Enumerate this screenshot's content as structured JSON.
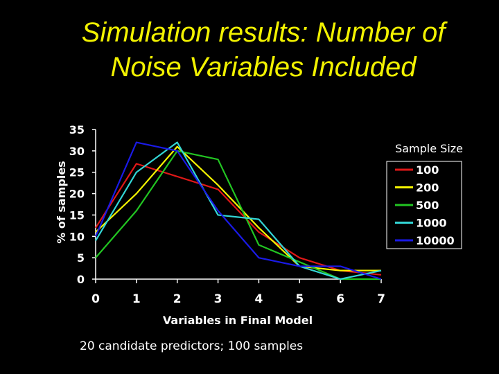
{
  "slide": {
    "title_line1": "Simulation results: Number of",
    "title_line2": "Noise Variables Included",
    "footnote": "20 candidate predictors; 100 samples"
  },
  "chart_data": {
    "type": "line",
    "title": "",
    "xlabel": "Variables in Final Model",
    "ylabel": "% of samples",
    "x": [
      0,
      1,
      2,
      3,
      4,
      5,
      6,
      7
    ],
    "xlim": [
      0,
      7
    ],
    "ylim": [
      0,
      35
    ],
    "yticks": [
      0,
      5,
      10,
      15,
      20,
      25,
      30,
      35
    ],
    "grid": false,
    "legend_title": "Sample Size",
    "legend_position": "right",
    "series": [
      {
        "name": "100",
        "color": "#e01818",
        "values": [
          12,
          27,
          24,
          21,
          11,
          5,
          2,
          1
        ]
      },
      {
        "name": "200",
        "color": "#f5f500",
        "values": [
          11,
          20,
          31,
          22,
          12,
          3,
          2,
          2
        ]
      },
      {
        "name": "500",
        "color": "#22c522",
        "values": [
          5,
          16,
          30,
          28,
          8,
          4,
          0,
          0
        ]
      },
      {
        "name": "1000",
        "color": "#33d6d6",
        "values": [
          9,
          25,
          32,
          15,
          14,
          3,
          0,
          2
        ]
      },
      {
        "name": "10000",
        "color": "#1a1ae6",
        "values": [
          10,
          32,
          30,
          16,
          5,
          3,
          3,
          0
        ]
      }
    ]
  }
}
